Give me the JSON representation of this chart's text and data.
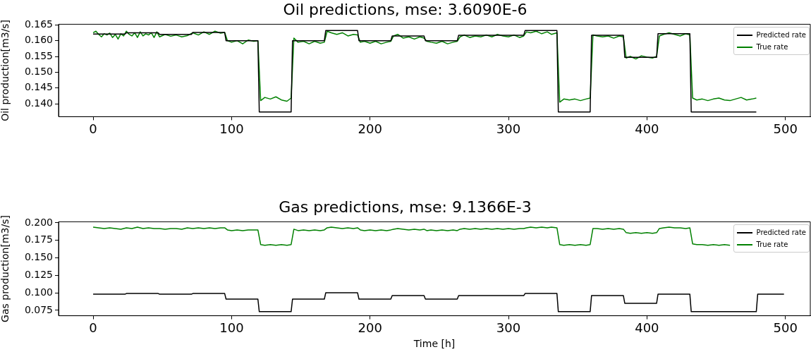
{
  "chart_data": [
    {
      "type": "line",
      "title": "Oil predictions, mse: 3.6090E-6",
      "ylabel": "Oil production[m3/s]",
      "xlim": [
        -25,
        518
      ],
      "xticks": [
        0,
        100,
        200,
        300,
        400,
        500
      ],
      "ylim": [
        0.1359,
        0.1652
      ],
      "yticks": [
        {
          "value": 0.14,
          "label": "0.140"
        },
        0.145,
        {
          "value": 0.15,
          "label": "0.150"
        },
        0.155,
        {
          "value": 0.16,
          "label": "0.160"
        },
        0.165
      ],
      "grid": false,
      "legend": "top right",
      "marker": "none",
      "line_style": "solid",
      "series": [
        {
          "name": "Predicted rate",
          "color": "#000000",
          "x": [
            0,
            23,
            24,
            47,
            48,
            71,
            72,
            95,
            96,
            119,
            120,
            143,
            144,
            167,
            168,
            191,
            192,
            215,
            216,
            239,
            240,
            263,
            264,
            287,
            288,
            311,
            312,
            335,
            336,
            359,
            360,
            383,
            384,
            407,
            408,
            431,
            432,
            479
          ],
          "values": [
            0.1621,
            0.1621,
            0.1625,
            0.1625,
            0.162,
            0.162,
            0.1626,
            0.1626,
            0.16,
            0.16,
            0.1374,
            0.1374,
            0.16,
            0.16,
            0.1632,
            0.1632,
            0.16,
            0.16,
            0.1615,
            0.1615,
            0.16,
            0.16,
            0.1617,
            0.1617,
            0.1617,
            0.1617,
            0.1632,
            0.1632,
            0.1374,
            0.1374,
            0.1617,
            0.1617,
            0.1547,
            0.1547,
            0.1622,
            0.1622,
            0.1374,
            0.1374
          ]
        },
        {
          "name": "True rate",
          "color": "#008000",
          "x": [
            0,
            2,
            4,
            6,
            8,
            10,
            12,
            14,
            16,
            18,
            20,
            22,
            24,
            26,
            28,
            30,
            32,
            34,
            36,
            38,
            40,
            42,
            44,
            46,
            48,
            52,
            56,
            60,
            64,
            68,
            72,
            76,
            80,
            84,
            88,
            92,
            95,
            97,
            100,
            104,
            108,
            112,
            116,
            119,
            121,
            124,
            128,
            132,
            136,
            140,
            143,
            145,
            148,
            152,
            156,
            160,
            164,
            167,
            169,
            172,
            176,
            180,
            184,
            188,
            191,
            193,
            196,
            200,
            204,
            208,
            212,
            215,
            217,
            220,
            224,
            228,
            232,
            236,
            239,
            241,
            244,
            248,
            252,
            256,
            260,
            263,
            265,
            268,
            272,
            276,
            280,
            284,
            288,
            292,
            296,
            300,
            304,
            308,
            311,
            313,
            316,
            320,
            324,
            328,
            331,
            335,
            337,
            340,
            344,
            348,
            352,
            356,
            359,
            361,
            364,
            368,
            372,
            376,
            380,
            383,
            385,
            388,
            392,
            396,
            400,
            404,
            407,
            409,
            412,
            416,
            420,
            424,
            428,
            431,
            433,
            436,
            440,
            444,
            448,
            452,
            456,
            460,
            464,
            468,
            472,
            476,
            479
          ],
          "values": [
            0.1625,
            0.163,
            0.162,
            0.1612,
            0.1622,
            0.1618,
            0.1624,
            0.161,
            0.162,
            0.1605,
            0.1622,
            0.1615,
            0.163,
            0.162,
            0.1615,
            0.1625,
            0.161,
            0.1628,
            0.1615,
            0.1622,
            0.1618,
            0.1625,
            0.161,
            0.1628,
            0.1612,
            0.162,
            0.1614,
            0.1618,
            0.1612,
            0.1616,
            0.1625,
            0.1618,
            0.1628,
            0.162,
            0.163,
            0.1624,
            0.1626,
            0.16,
            0.1595,
            0.16,
            0.159,
            0.1602,
            0.1598,
            0.16,
            0.141,
            0.142,
            0.1415,
            0.1422,
            0.1412,
            0.1408,
            0.1418,
            0.1608,
            0.1595,
            0.1598,
            0.159,
            0.1598,
            0.1592,
            0.1595,
            0.163,
            0.1625,
            0.162,
            0.1625,
            0.1615,
            0.162,
            0.1618,
            0.1595,
            0.1598,
            0.1592,
            0.1598,
            0.159,
            0.1595,
            0.1598,
            0.1615,
            0.162,
            0.1608,
            0.1612,
            0.1605,
            0.1612,
            0.1608,
            0.1598,
            0.1595,
            0.1592,
            0.1598,
            0.159,
            0.1595,
            0.1598,
            0.1612,
            0.1618,
            0.161,
            0.1615,
            0.1612,
            0.1618,
            0.1612,
            0.162,
            0.1615,
            0.1612,
            0.1618,
            0.161,
            0.1615,
            0.1628,
            0.1625,
            0.163,
            0.1622,
            0.1628,
            0.162,
            0.1625,
            0.1405,
            0.1415,
            0.1412,
            0.1415,
            0.141,
            0.1415,
            0.1418,
            0.1618,
            0.1615,
            0.1612,
            0.1615,
            0.1608,
            0.1615,
            0.1612,
            0.1545,
            0.155,
            0.1542,
            0.1552,
            0.1548,
            0.1545,
            0.155,
            0.1615,
            0.162,
            0.1625,
            0.162,
            0.1615,
            0.1622,
            0.1618,
            0.1418,
            0.1412,
            0.1415,
            0.141,
            0.1415,
            0.1418,
            0.1412,
            0.141,
            0.1415,
            0.142,
            0.1412,
            0.1415,
            0.1418
          ]
        }
      ]
    },
    {
      "type": "line",
      "title": "Gas predictions, mse: 9.1366E-3",
      "xlabel": "Time [h]",
      "ylabel": "Gas production[m3/s]",
      "xlim": [
        -25,
        518
      ],
      "xticks": [
        0,
        100,
        200,
        300,
        400,
        500
      ],
      "ylim": [
        0.0672,
        0.2016
      ],
      "yticks": [
        0.075,
        {
          "value": 0.1,
          "label": "0.100"
        },
        0.125,
        {
          "value": 0.15,
          "label": "0.150"
        },
        0.175,
        {
          "value": 0.2,
          "label": "0.200"
        }
      ],
      "grid": false,
      "legend": "top right",
      "marker": "none",
      "line_style": "solid",
      "series": [
        {
          "name": "Predicted rate",
          "color": "#000000",
          "x": [
            0,
            23,
            24,
            47,
            48,
            71,
            72,
            95,
            96,
            119,
            120,
            143,
            144,
            167,
            168,
            191,
            192,
            215,
            216,
            239,
            240,
            263,
            264,
            287,
            288,
            311,
            312,
            335,
            336,
            359,
            360,
            383,
            384,
            407,
            408,
            431,
            432,
            479,
            480,
            499
          ],
          "values": [
            0.098,
            0.098,
            0.099,
            0.099,
            0.098,
            0.098,
            0.099,
            0.099,
            0.091,
            0.091,
            0.073,
            0.073,
            0.091,
            0.091,
            0.1,
            0.1,
            0.091,
            0.091,
            0.096,
            0.096,
            0.091,
            0.091,
            0.096,
            0.096,
            0.096,
            0.096,
            0.099,
            0.099,
            0.073,
            0.073,
            0.096,
            0.096,
            0.085,
            0.085,
            0.098,
            0.098,
            0.073,
            0.073,
            0.098,
            0.098
          ]
        },
        {
          "name": "True rate",
          "color": "#008000",
          "x": [
            0,
            4,
            8,
            12,
            16,
            20,
            24,
            28,
            32,
            36,
            40,
            44,
            48,
            52,
            56,
            60,
            64,
            68,
            72,
            76,
            80,
            84,
            88,
            92,
            95,
            97,
            100,
            104,
            108,
            112,
            116,
            119,
            121,
            124,
            128,
            132,
            136,
            140,
            143,
            145,
            148,
            152,
            156,
            160,
            164,
            167,
            169,
            172,
            176,
            180,
            184,
            188,
            191,
            193,
            196,
            200,
            204,
            208,
            212,
            215,
            217,
            220,
            224,
            228,
            232,
            236,
            239,
            241,
            244,
            248,
            252,
            256,
            260,
            263,
            265,
            268,
            272,
            276,
            280,
            284,
            288,
            292,
            296,
            300,
            304,
            308,
            311,
            313,
            316,
            320,
            324,
            328,
            331,
            335,
            337,
            340,
            344,
            348,
            352,
            356,
            359,
            361,
            364,
            368,
            372,
            376,
            380,
            383,
            385,
            388,
            392,
            396,
            400,
            404,
            407,
            409,
            412,
            416,
            420,
            424,
            428,
            431,
            433,
            436,
            440,
            444,
            448,
            452,
            456,
            460
          ],
          "values": [
            0.194,
            0.193,
            0.192,
            0.193,
            0.192,
            0.191,
            0.193,
            0.192,
            0.194,
            0.192,
            0.193,
            0.192,
            0.192,
            0.191,
            0.192,
            0.192,
            0.191,
            0.193,
            0.192,
            0.193,
            0.192,
            0.193,
            0.192,
            0.193,
            0.193,
            0.19,
            0.189,
            0.19,
            0.189,
            0.19,
            0.19,
            0.19,
            0.169,
            0.168,
            0.169,
            0.168,
            0.169,
            0.168,
            0.169,
            0.191,
            0.189,
            0.19,
            0.189,
            0.19,
            0.189,
            0.19,
            0.193,
            0.194,
            0.193,
            0.192,
            0.193,
            0.192,
            0.193,
            0.19,
            0.189,
            0.19,
            0.189,
            0.19,
            0.189,
            0.19,
            0.191,
            0.192,
            0.191,
            0.19,
            0.191,
            0.19,
            0.191,
            0.189,
            0.19,
            0.189,
            0.19,
            0.189,
            0.19,
            0.189,
            0.191,
            0.192,
            0.191,
            0.192,
            0.191,
            0.192,
            0.191,
            0.192,
            0.191,
            0.192,
            0.191,
            0.192,
            0.192,
            0.193,
            0.194,
            0.193,
            0.194,
            0.193,
            0.194,
            0.193,
            0.169,
            0.168,
            0.169,
            0.168,
            0.169,
            0.168,
            0.169,
            0.192,
            0.192,
            0.191,
            0.192,
            0.191,
            0.192,
            0.191,
            0.186,
            0.185,
            0.186,
            0.185,
            0.186,
            0.185,
            0.186,
            0.192,
            0.193,
            0.194,
            0.193,
            0.193,
            0.192,
            0.193,
            0.17,
            0.169,
            0.169,
            0.168,
            0.169,
            0.168,
            0.169,
            0.168
          ]
        }
      ]
    }
  ]
}
